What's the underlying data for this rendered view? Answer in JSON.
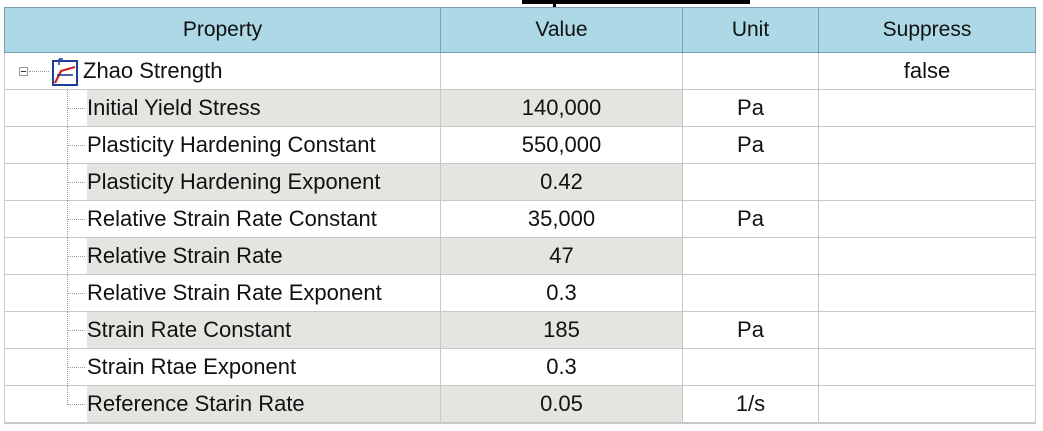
{
  "header": {
    "property": "Property",
    "value": "Value",
    "unit": "Unit",
    "suppress": "Suppress"
  },
  "parent": {
    "name": "Zhao Strength",
    "value": "",
    "unit": "",
    "suppress": "false",
    "icon": "strength-model-icon",
    "expanded": true
  },
  "rows": [
    {
      "name": "Initial Yield Stress",
      "value": "140,000",
      "unit": "Pa"
    },
    {
      "name": "Plasticity Hardening Constant",
      "value": "550,000",
      "unit": "Pa"
    },
    {
      "name": "Plasticity Hardening Exponent",
      "value": "0.42",
      "unit": ""
    },
    {
      "name": "Relative Strain Rate Constant",
      "value": "35,000",
      "unit": "Pa"
    },
    {
      "name": "Relative Strain Rate",
      "value": "47",
      "unit": ""
    },
    {
      "name": "Relative Strain Rate Exponent",
      "value": "0.3",
      "unit": ""
    },
    {
      "name": "Strain Rate Constant",
      "value": "185",
      "unit": "Pa"
    },
    {
      "name": "Strain Rtae Exponent",
      "value": "0.3",
      "unit": ""
    },
    {
      "name": "Reference Starin Rate",
      "value": "0.05",
      "unit": "1/s"
    }
  ],
  "colors": {
    "header_bg": "#add8e6",
    "alt_row_bg": "#e6e4e0"
  }
}
